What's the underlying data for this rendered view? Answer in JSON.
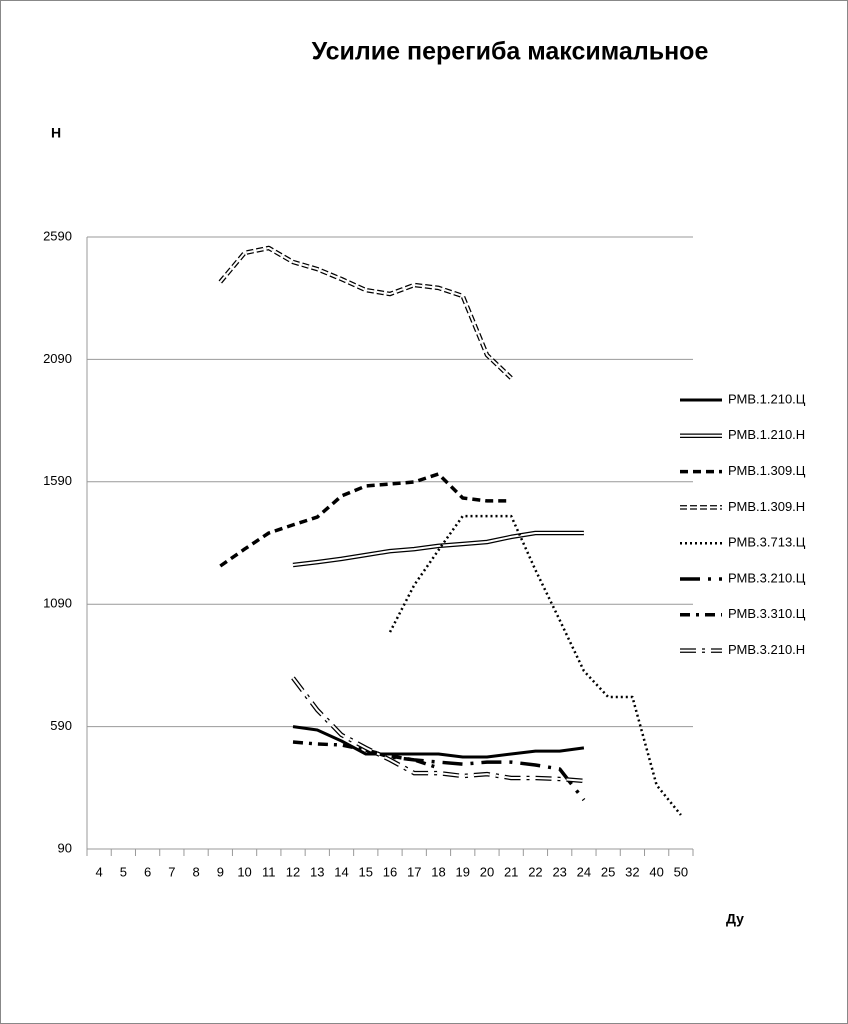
{
  "chart_data": {
    "type": "line",
    "title": "Усилие перегиба максимальное",
    "y_label": "Н",
    "x_label": "Ду",
    "categories": [
      "4",
      "5",
      "6",
      "7",
      "8",
      "9",
      "10",
      "11",
      "12",
      "13",
      "14",
      "15",
      "16",
      "17",
      "18",
      "19",
      "20",
      "21",
      "22",
      "23",
      "24",
      "25",
      "32",
      "40",
      "50"
    ],
    "ylim": [
      90,
      2590
    ],
    "yticks": [
      90,
      590,
      1090,
      1590,
      2090,
      2590
    ],
    "grid": true,
    "legend": "right",
    "series": [
      {
        "name": "РМВ.1.210.Ц",
        "color": "#000000",
        "line_style": "solid",
        "values": [
          null,
          null,
          null,
          null,
          null,
          null,
          null,
          null,
          590,
          576,
          531,
          478,
          478,
          478,
          478,
          466,
          466,
          478,
          490,
          490,
          503,
          null,
          null,
          null,
          null
        ]
      },
      {
        "name": "РМВ.1.210.Н",
        "color": "#000000",
        "line_style": "double",
        "values": [
          null,
          null,
          null,
          null,
          null,
          null,
          null,
          null,
          1250,
          1262,
          1275,
          1291,
          1307,
          1315,
          1328,
          1336,
          1344,
          1365,
          1381,
          1381,
          1381,
          null,
          null,
          null,
          null
        ]
      },
      {
        "name": "РМВ.1.309.Ц",
        "color": "#000000",
        "line_style": "dashed",
        "values": [
          null,
          null,
          null,
          null,
          null,
          1246,
          1315,
          1381,
          1414,
          1446,
          1532,
          1573,
          1581,
          1589,
          1622,
          1524,
          1512,
          1512,
          null,
          null,
          null,
          null,
          null,
          null,
          null
        ]
      },
      {
        "name": "РМВ.1.309.Н",
        "color": "#000000",
        "line_style": "double-dashed",
        "values": [
          null,
          null,
          null,
          null,
          null,
          2406,
          2525,
          2545,
          2488,
          2459,
          2418,
          2373,
          2357,
          2394,
          2382,
          2349,
          2108,
          2014,
          null,
          null,
          null,
          null,
          null,
          null,
          null
        ]
      },
      {
        "name": "РМВ.3.713.Ц",
        "color": "#000000",
        "line_style": "dotted",
        "values": [
          null,
          null,
          null,
          null,
          null,
          null,
          null,
          null,
          null,
          null,
          null,
          null,
          976,
          1168,
          1311,
          1450,
          1450,
          1450,
          1230,
          1025,
          817,
          711,
          711,
          351,
          229
        ]
      },
      {
        "name": "РМВ.3.210.Ц",
        "color": "#000000",
        "line_style": "long-dash-dot",
        "values": [
          null,
          null,
          null,
          null,
          null,
          null,
          null,
          null,
          null,
          null,
          null,
          494,
          466,
          454,
          445,
          437,
          445,
          445,
          433,
          417,
          290,
          null,
          null,
          null,
          null
        ]
      },
      {
        "name": "РМВ.3.310.Ц",
        "color": "#000000",
        "line_style": "dash-dot",
        "values": [
          null,
          null,
          null,
          null,
          null,
          null,
          null,
          null,
          527,
          519,
          515,
          494,
          470,
          454,
          421,
          null,
          null,
          null,
          null,
          null,
          null,
          null,
          null,
          null,
          null
        ]
      },
      {
        "name": "РМВ.3.210.Н",
        "color": "#000000",
        "line_style": "double-dash-dot",
        "values": [
          null,
          null,
          null,
          null,
          null,
          null,
          null,
          null,
          789,
          658,
          556,
          503,
          454,
          400,
          400,
          388,
          396,
          380,
          380,
          376,
          368,
          null,
          null,
          null,
          null
        ]
      }
    ]
  }
}
